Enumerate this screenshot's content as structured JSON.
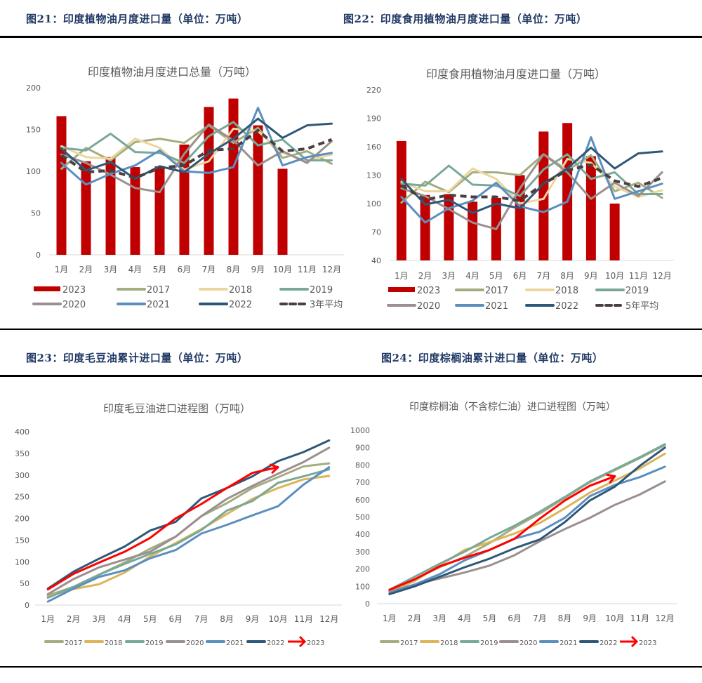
{
  "captions": {
    "fig21": "图21：印度植物油月度进口量（单位：万吨）",
    "fig22": "图22：印度食用植物油月度进口量（单位：万吨）",
    "fig23": "图23：印度毛豆油累计进口量（单位：万吨）",
    "fig24": "图24：印度棕榈油累计进口量（单位：万吨）"
  },
  "colors": {
    "2023": "#c00000",
    "2023_arrow": "#ff0000",
    "2017": "#a4ad7f",
    "2018": "#ecd6a0",
    "2018_cum": "#dcb45a",
    "2019": "#79a898",
    "2020": "#9b8f8f",
    "2021": "#5b8fbf",
    "2022": "#2f5878",
    "avg": "#4a4040"
  },
  "chart_data": [
    {
      "id": "chart21",
      "type": "bar+line",
      "title": "印度植物油月度进口总量（万吨）",
      "xlabel": "",
      "ylabel": "",
      "categories": [
        "1月",
        "2月",
        "3月",
        "4月",
        "5月",
        "6月",
        "7月",
        "8月",
        "9月",
        "10月",
        "11月",
        "12月"
      ],
      "ylim": [
        0,
        200
      ],
      "yticks": [
        0,
        50,
        100,
        150,
        200
      ],
      "grid": false,
      "legend_position": "bottom",
      "bars": {
        "name": "2023",
        "values": [
          166,
          112,
          117,
          105,
          106,
          132,
          177,
          187,
          155,
          103,
          null,
          null
        ]
      },
      "series": [
        {
          "name": "2017",
          "values": [
            103,
            128,
            113,
            135,
            139,
            134,
            155,
            134,
            152,
            116,
            124,
            109
          ]
        },
        {
          "name": "2018",
          "values": [
            130,
            117,
            115,
            139,
            128,
            102,
            112,
            151,
            148,
            122,
            113,
            120
          ]
        },
        {
          "name": "2019",
          "values": [
            128,
            125,
            145,
            123,
            122,
            110,
            142,
            159,
            131,
            138,
            113,
            113
          ]
        },
        {
          "name": "2020",
          "values": [
            120,
            110,
            96,
            80,
            75,
            121,
            156,
            137,
            107,
            124,
            110,
            136
          ]
        },
        {
          "name": "2021",
          "values": [
            110,
            84,
            97,
            107,
            125,
            100,
            98,
            105,
            176,
            107,
            117,
            122
          ]
        },
        {
          "name": "2022",
          "values": [
            127,
            101,
            111,
            91,
            106,
            99,
            121,
            139,
            163,
            140,
            155,
            157
          ]
        },
        {
          "name": "3年平均",
          "dashed": true,
          "values": [
            119,
            99,
            101,
            92,
            104,
            107,
            125,
            127,
            149,
            124,
            127,
            138
          ]
        }
      ]
    },
    {
      "id": "chart22",
      "type": "bar+line",
      "title": "印度食用植物油月度进口量（万吨）",
      "xlabel": "",
      "ylabel": "",
      "categories": [
        "1月",
        "2月",
        "3月",
        "4月",
        "5月",
        "6月",
        "7月",
        "8月",
        "9月",
        "10月",
        "11月",
        "12月"
      ],
      "ylim": [
        40,
        220
      ],
      "yticks": [
        40,
        70,
        100,
        130,
        160,
        190,
        220
      ],
      "grid": false,
      "legend_position": "bottom",
      "bars": {
        "name": "2023",
        "values": [
          166,
          109,
          110,
          102,
          106,
          130,
          176,
          185,
          150,
          100,
          null,
          null
        ]
      },
      "series": [
        {
          "name": "2017",
          "values": [
            101,
            123,
            112,
            133,
            133,
            130,
            152,
            135,
            151,
            113,
            122,
            106
          ]
        },
        {
          "name": "2018",
          "values": [
            123,
            113,
            113,
            137,
            126,
            100,
            105,
            147,
            143,
            118,
            107,
            114
          ]
        },
        {
          "name": "2019",
          "values": [
            121,
            119,
            140,
            120,
            119,
            108,
            136,
            152,
            126,
            133,
            110,
            110
          ]
        },
        {
          "name": "2020",
          "values": [
            116,
            108,
            94,
            80,
            73,
            116,
            152,
            133,
            105,
            122,
            108,
            133
          ]
        },
        {
          "name": "2021",
          "values": [
            107,
            80,
            95,
            103,
            122,
            97,
            91,
            102,
            170,
            105,
            113,
            121
          ]
        },
        {
          "name": "2022",
          "values": [
            126,
            99,
            104,
            90,
            100,
            95,
            121,
            137,
            159,
            137,
            153,
            155
          ]
        },
        {
          "name": "5年平均",
          "dashed": true,
          "values": [
            119,
            104,
            109,
            107,
            107,
            103,
            121,
            135,
            141,
            124,
            118,
            127
          ]
        }
      ]
    },
    {
      "id": "chart23",
      "type": "line",
      "title": "印度毛豆油进口进程图（万吨）",
      "xlabel": "",
      "ylabel": "",
      "categories": [
        "1月",
        "2月",
        "3月",
        "4月",
        "5月",
        "6月",
        "7月",
        "8月",
        "9月",
        "10月",
        "11月",
        "12月"
      ],
      "ylim": [
        0,
        400
      ],
      "yticks": [
        0,
        50,
        100,
        150,
        200,
        250,
        300,
        350,
        400
      ],
      "grid": false,
      "legend_position": "bottom",
      "series": [
        {
          "name": "2017",
          "values": [
            22,
            42,
            70,
            98,
            130,
            158,
            205,
            235,
            270,
            295,
            320,
            327
          ]
        },
        {
          "name": "2018",
          "values": [
            20,
            37,
            48,
            75,
            112,
            143,
            175,
            210,
            245,
            270,
            290,
            298
          ]
        },
        {
          "name": "2019",
          "values": [
            17,
            42,
            70,
            95,
            118,
            140,
            173,
            218,
            240,
            282,
            297,
            313
          ]
        },
        {
          "name": "2020",
          "values": [
            25,
            60,
            87,
            105,
            123,
            158,
            205,
            245,
            275,
            303,
            330,
            363
          ]
        },
        {
          "name": "2021",
          "values": [
            8,
            38,
            65,
            80,
            108,
            127,
            165,
            185,
            207,
            228,
            278,
            318
          ]
        },
        {
          "name": "2022",
          "values": [
            38,
            77,
            107,
            135,
            172,
            192,
            246,
            270,
            297,
            332,
            353,
            380
          ]
        },
        {
          "name": "2023",
          "arrow": true,
          "values": [
            36,
            72,
            98,
            123,
            155,
            200,
            233,
            270,
            305,
            318
          ]
        }
      ]
    },
    {
      "id": "chart24",
      "type": "line",
      "title": "印度棕榈油（不含棕仁油）进口进程图（万吨）",
      "xlabel": "",
      "ylabel": "",
      "categories": [
        "1月",
        "2月",
        "3月",
        "4月",
        "5月",
        "6月",
        "7月",
        "8月",
        "9月",
        "10月",
        "11月",
        "12月"
      ],
      "ylim": [
        0,
        1000
      ],
      "yticks": [
        0,
        100,
        200,
        300,
        400,
        500,
        600,
        700,
        800,
        900,
        1000
      ],
      "grid": false,
      "legend_position": "bottom",
      "series": [
        {
          "name": "2017",
          "values": [
            75,
            140,
            210,
            270,
            350,
            440,
            520,
            610,
            700,
            770,
            840,
            915
          ]
        },
        {
          "name": "2018",
          "values": [
            70,
            130,
            220,
            310,
            355,
            405,
            465,
            550,
            640,
            710,
            780,
            865
          ]
        },
        {
          "name": "2019",
          "values": [
            80,
            155,
            230,
            300,
            380,
            450,
            530,
            615,
            705,
            775,
            845,
            920
          ]
        },
        {
          "name": "2020",
          "values": [
            70,
            110,
            145,
            180,
            220,
            280,
            360,
            430,
            495,
            570,
            630,
            705
          ]
        },
        {
          "name": "2021",
          "values": [
            60,
            110,
            170,
            250,
            310,
            375,
            415,
            495,
            620,
            685,
            730,
            790
          ]
        },
        {
          "name": "2022",
          "values": [
            55,
            100,
            155,
            210,
            260,
            320,
            370,
            470,
            595,
            675,
            795,
            900
          ]
        },
        {
          "name": "2023",
          "arrow": true,
          "values": [
            80,
            140,
            215,
            265,
            310,
            375,
            490,
            595,
            680,
            735
          ]
        }
      ]
    }
  ]
}
